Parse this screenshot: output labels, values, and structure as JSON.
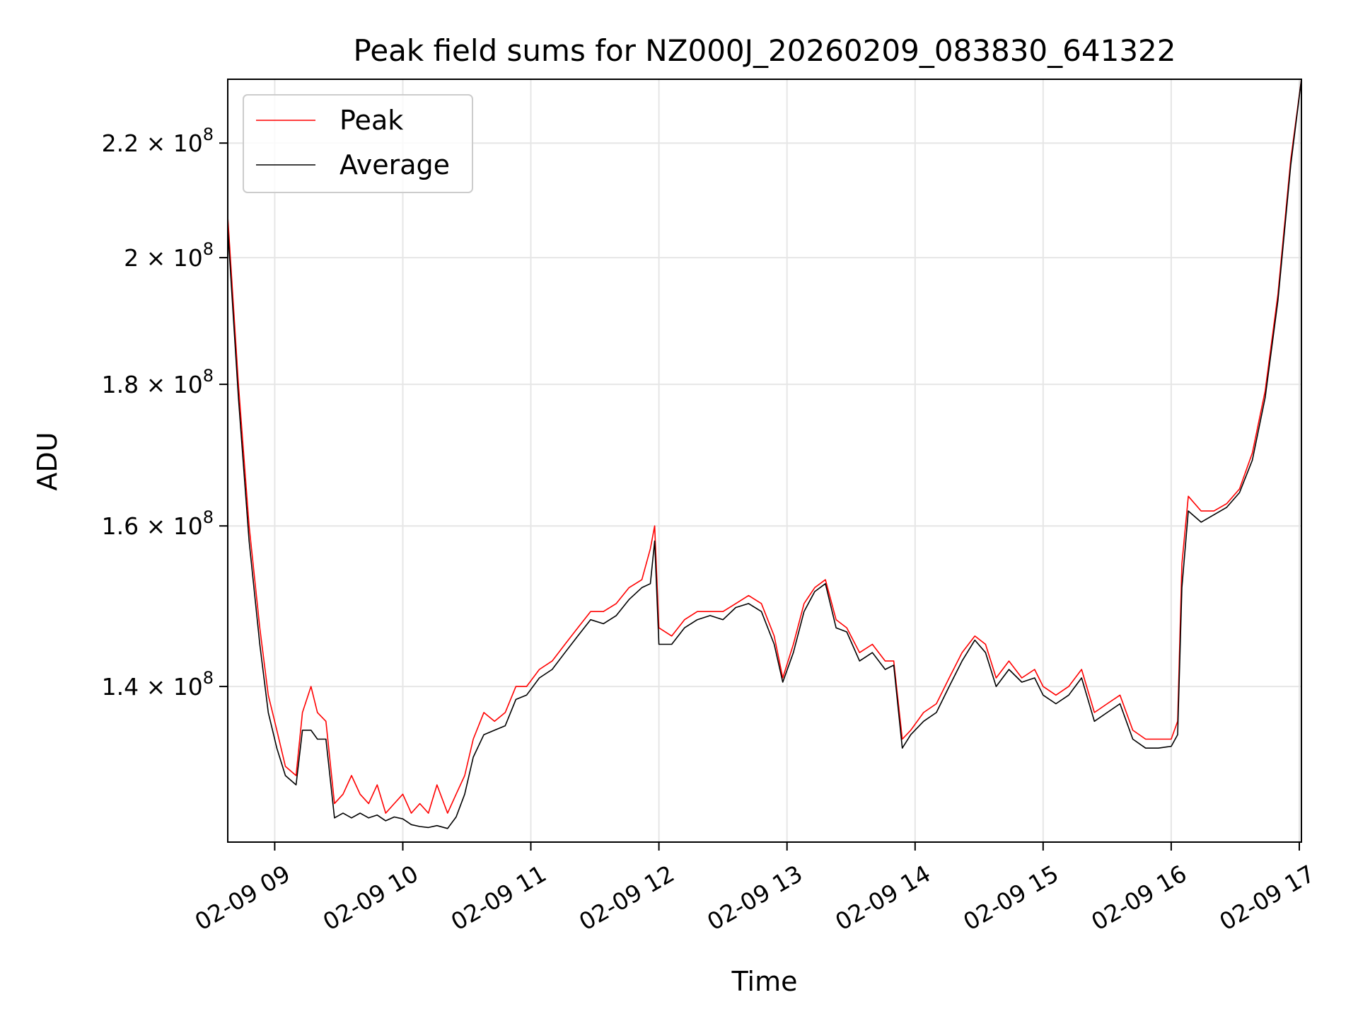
{
  "chart_data": {
    "type": "line",
    "title": "Peak field sums for NZ000J_20260209_083830_641322",
    "xlabel": "Time",
    "ylabel": "ADU",
    "yscale": "log",
    "xlim": [
      "2026-02-09T08:38",
      "2026-02-09T17:01"
    ],
    "ylim": [
      123000000,
      232000000
    ],
    "grid": true,
    "legend": "top-left",
    "x_ticks": [
      {
        "label": "02-09 09",
        "t": "2026-02-09T09:00"
      },
      {
        "label": "02-09 10",
        "t": "2026-02-09T10:00"
      },
      {
        "label": "02-09 11",
        "t": "2026-02-09T11:00"
      },
      {
        "label": "02-09 12",
        "t": "2026-02-09T12:00"
      },
      {
        "label": "02-09 13",
        "t": "2026-02-09T13:00"
      },
      {
        "label": "02-09 14",
        "t": "2026-02-09T14:00"
      },
      {
        "label": "02-09 15",
        "t": "2026-02-09T15:00"
      },
      {
        "label": "02-09 16",
        "t": "2026-02-09T16:00"
      },
      {
        "label": "02-09 17",
        "t": "2026-02-09T17:00"
      }
    ],
    "y_ticks": [
      {
        "value": 140000000,
        "mantissa": "1.4"
      },
      {
        "value": 160000000,
        "mantissa": "1.6"
      },
      {
        "value": 180000000,
        "mantissa": "1.8"
      },
      {
        "value": 200000000,
        "mantissa": "2"
      },
      {
        "value": 220000000,
        "mantissa": "2.2"
      }
    ],
    "y_tick_base": "10",
    "y_tick_exponent": "8",
    "y_tick_times": "×",
    "series": [
      {
        "name": "Peak",
        "color": "#ff0000",
        "points": [
          [
            "2026-02-09T08:38",
            207000000
          ],
          [
            "2026-02-09T08:43",
            180000000
          ],
          [
            "2026-02-09T08:48",
            160000000
          ],
          [
            "2026-02-09T08:53",
            147000000
          ],
          [
            "2026-02-09T08:57",
            139000000
          ],
          [
            "2026-02-09T09:01",
            135000000
          ],
          [
            "2026-02-09T09:05",
            131000000
          ],
          [
            "2026-02-09T09:10",
            130000000
          ],
          [
            "2026-02-09T09:13",
            137000000
          ],
          [
            "2026-02-09T09:17",
            140000000
          ],
          [
            "2026-02-09T09:20",
            137000000
          ],
          [
            "2026-02-09T09:24",
            136000000
          ],
          [
            "2026-02-09T09:28",
            127000000
          ],
          [
            "2026-02-09T09:32",
            128000000
          ],
          [
            "2026-02-09T09:36",
            130000000
          ],
          [
            "2026-02-09T09:40",
            128000000
          ],
          [
            "2026-02-09T09:44",
            127000000
          ],
          [
            "2026-02-09T09:48",
            129000000
          ],
          [
            "2026-02-09T09:52",
            126000000
          ],
          [
            "2026-02-09T09:56",
            127000000
          ],
          [
            "2026-02-09T10:00",
            128000000
          ],
          [
            "2026-02-09T10:04",
            126000000
          ],
          [
            "2026-02-09T10:08",
            127000000
          ],
          [
            "2026-02-09T10:12",
            126000000
          ],
          [
            "2026-02-09T10:16",
            129000000
          ],
          [
            "2026-02-09T10:21",
            126000000
          ],
          [
            "2026-02-09T10:25",
            128000000
          ],
          [
            "2026-02-09T10:29",
            130000000
          ],
          [
            "2026-02-09T10:33",
            134000000
          ],
          [
            "2026-02-09T10:38",
            137000000
          ],
          [
            "2026-02-09T10:43",
            136000000
          ],
          [
            "2026-02-09T10:48",
            137000000
          ],
          [
            "2026-02-09T10:53",
            140000000
          ],
          [
            "2026-02-09T10:58",
            140000000
          ],
          [
            "2026-02-09T11:04",
            142000000
          ],
          [
            "2026-02-09T11:10",
            143000000
          ],
          [
            "2026-02-09T11:16",
            145000000
          ],
          [
            "2026-02-09T11:22",
            147000000
          ],
          [
            "2026-02-09T11:28",
            149000000
          ],
          [
            "2026-02-09T11:34",
            149000000
          ],
          [
            "2026-02-09T11:40",
            150000000
          ],
          [
            "2026-02-09T11:46",
            152000000
          ],
          [
            "2026-02-09T11:52",
            153000000
          ],
          [
            "2026-02-09T11:56",
            157000000
          ],
          [
            "2026-02-09T11:58",
            160000000
          ],
          [
            "2026-02-09T12:00",
            147000000
          ],
          [
            "2026-02-09T12:06",
            146000000
          ],
          [
            "2026-02-09T12:12",
            148000000
          ],
          [
            "2026-02-09T12:18",
            149000000
          ],
          [
            "2026-02-09T12:24",
            149000000
          ],
          [
            "2026-02-09T12:30",
            149000000
          ],
          [
            "2026-02-09T12:36",
            150000000
          ],
          [
            "2026-02-09T12:42",
            151000000
          ],
          [
            "2026-02-09T12:48",
            150000000
          ],
          [
            "2026-02-09T12:54",
            146000000
          ],
          [
            "2026-02-09T12:58",
            141000000
          ],
          [
            "2026-02-09T13:03",
            145000000
          ],
          [
            "2026-02-09T13:08",
            150000000
          ],
          [
            "2026-02-09T13:13",
            152000000
          ],
          [
            "2026-02-09T13:18",
            153000000
          ],
          [
            "2026-02-09T13:23",
            148000000
          ],
          [
            "2026-02-09T13:28",
            147000000
          ],
          [
            "2026-02-09T13:34",
            144000000
          ],
          [
            "2026-02-09T13:40",
            145000000
          ],
          [
            "2026-02-09T13:46",
            143000000
          ],
          [
            "2026-02-09T13:50",
            143000000
          ],
          [
            "2026-02-09T13:54",
            134000000
          ],
          [
            "2026-02-09T13:58",
            135000000
          ],
          [
            "2026-02-09T14:04",
            137000000
          ],
          [
            "2026-02-09T14:10",
            138000000
          ],
          [
            "2026-02-09T14:16",
            141000000
          ],
          [
            "2026-02-09T14:22",
            144000000
          ],
          [
            "2026-02-09T14:28",
            146000000
          ],
          [
            "2026-02-09T14:33",
            145000000
          ],
          [
            "2026-02-09T14:38",
            141000000
          ],
          [
            "2026-02-09T14:44",
            143000000
          ],
          [
            "2026-02-09T14:50",
            141000000
          ],
          [
            "2026-02-09T14:56",
            142000000
          ],
          [
            "2026-02-09T15:00",
            140000000
          ],
          [
            "2026-02-09T15:06",
            139000000
          ],
          [
            "2026-02-09T15:12",
            140000000
          ],
          [
            "2026-02-09T15:18",
            142000000
          ],
          [
            "2026-02-09T15:24",
            137000000
          ],
          [
            "2026-02-09T15:30",
            138000000
          ],
          [
            "2026-02-09T15:36",
            139000000
          ],
          [
            "2026-02-09T15:42",
            135000000
          ],
          [
            "2026-02-09T15:48",
            134000000
          ],
          [
            "2026-02-09T15:54",
            134000000
          ],
          [
            "2026-02-09T16:00",
            134000000
          ],
          [
            "2026-02-09T16:03",
            136000000
          ],
          [
            "2026-02-09T16:05",
            155000000
          ],
          [
            "2026-02-09T16:08",
            164000000
          ],
          [
            "2026-02-09T16:14",
            162000000
          ],
          [
            "2026-02-09T16:20",
            162000000
          ],
          [
            "2026-02-09T16:26",
            163000000
          ],
          [
            "2026-02-09T16:32",
            165000000
          ],
          [
            "2026-02-09T16:38",
            170000000
          ],
          [
            "2026-02-09T16:44",
            179000000
          ],
          [
            "2026-02-09T16:50",
            194000000
          ],
          [
            "2026-02-09T16:56",
            217000000
          ],
          [
            "2026-02-09T17:01",
            232000000
          ]
        ]
      },
      {
        "name": "Average",
        "color": "#000000",
        "points": [
          [
            "2026-02-09T08:38",
            205000000
          ],
          [
            "2026-02-09T08:43",
            178000000
          ],
          [
            "2026-02-09T08:48",
            158000000
          ],
          [
            "2026-02-09T08:53",
            145000000
          ],
          [
            "2026-02-09T08:57",
            137000000
          ],
          [
            "2026-02-09T09:01",
            133000000
          ],
          [
            "2026-02-09T09:05",
            130000000
          ],
          [
            "2026-02-09T09:10",
            129000000
          ],
          [
            "2026-02-09T09:13",
            135000000
          ],
          [
            "2026-02-09T09:17",
            135000000
          ],
          [
            "2026-02-09T09:20",
            134000000
          ],
          [
            "2026-02-09T09:24",
            134000000
          ],
          [
            "2026-02-09T09:28",
            125500000
          ],
          [
            "2026-02-09T09:32",
            126000000
          ],
          [
            "2026-02-09T09:36",
            125500000
          ],
          [
            "2026-02-09T09:40",
            126000000
          ],
          [
            "2026-02-09T09:44",
            125500000
          ],
          [
            "2026-02-09T09:48",
            125800000
          ],
          [
            "2026-02-09T09:52",
            125200000
          ],
          [
            "2026-02-09T09:56",
            125600000
          ],
          [
            "2026-02-09T10:00",
            125400000
          ],
          [
            "2026-02-09T10:04",
            124800000
          ],
          [
            "2026-02-09T10:08",
            124600000
          ],
          [
            "2026-02-09T10:12",
            124500000
          ],
          [
            "2026-02-09T10:16",
            124700000
          ],
          [
            "2026-02-09T10:21",
            124400000
          ],
          [
            "2026-02-09T10:25",
            125600000
          ],
          [
            "2026-02-09T10:29",
            128000000
          ],
          [
            "2026-02-09T10:33",
            132000000
          ],
          [
            "2026-02-09T10:38",
            134500000
          ],
          [
            "2026-02-09T10:43",
            135000000
          ],
          [
            "2026-02-09T10:48",
            135500000
          ],
          [
            "2026-02-09T10:53",
            138500000
          ],
          [
            "2026-02-09T10:58",
            139000000
          ],
          [
            "2026-02-09T11:04",
            141000000
          ],
          [
            "2026-02-09T11:10",
            142000000
          ],
          [
            "2026-02-09T11:16",
            144000000
          ],
          [
            "2026-02-09T11:22",
            146000000
          ],
          [
            "2026-02-09T11:28",
            148000000
          ],
          [
            "2026-02-09T11:34",
            147500000
          ],
          [
            "2026-02-09T11:40",
            148500000
          ],
          [
            "2026-02-09T11:46",
            150500000
          ],
          [
            "2026-02-09T11:52",
            152000000
          ],
          [
            "2026-02-09T11:56",
            152500000
          ],
          [
            "2026-02-09T11:58",
            158000000
          ],
          [
            "2026-02-09T12:00",
            145000000
          ],
          [
            "2026-02-09T12:06",
            145000000
          ],
          [
            "2026-02-09T12:12",
            147000000
          ],
          [
            "2026-02-09T12:18",
            148000000
          ],
          [
            "2026-02-09T12:24",
            148500000
          ],
          [
            "2026-02-09T12:30",
            148000000
          ],
          [
            "2026-02-09T12:36",
            149500000
          ],
          [
            "2026-02-09T12:42",
            150000000
          ],
          [
            "2026-02-09T12:48",
            149000000
          ],
          [
            "2026-02-09T12:54",
            145000000
          ],
          [
            "2026-02-09T12:58",
            140500000
          ],
          [
            "2026-02-09T13:03",
            144000000
          ],
          [
            "2026-02-09T13:08",
            149000000
          ],
          [
            "2026-02-09T13:13",
            151500000
          ],
          [
            "2026-02-09T13:18",
            152500000
          ],
          [
            "2026-02-09T13:23",
            147000000
          ],
          [
            "2026-02-09T13:28",
            146500000
          ],
          [
            "2026-02-09T13:34",
            143000000
          ],
          [
            "2026-02-09T13:40",
            144000000
          ],
          [
            "2026-02-09T13:46",
            142000000
          ],
          [
            "2026-02-09T13:50",
            142500000
          ],
          [
            "2026-02-09T13:54",
            133000000
          ],
          [
            "2026-02-09T13:58",
            134500000
          ],
          [
            "2026-02-09T14:04",
            136000000
          ],
          [
            "2026-02-09T14:10",
            137000000
          ],
          [
            "2026-02-09T14:16",
            140000000
          ],
          [
            "2026-02-09T14:22",
            143000000
          ],
          [
            "2026-02-09T14:28",
            145500000
          ],
          [
            "2026-02-09T14:33",
            144000000
          ],
          [
            "2026-02-09T14:38",
            140000000
          ],
          [
            "2026-02-09T14:44",
            142000000
          ],
          [
            "2026-02-09T14:50",
            140500000
          ],
          [
            "2026-02-09T14:56",
            141000000
          ],
          [
            "2026-02-09T15:00",
            139000000
          ],
          [
            "2026-02-09T15:06",
            138000000
          ],
          [
            "2026-02-09T15:12",
            139000000
          ],
          [
            "2026-02-09T15:18",
            141000000
          ],
          [
            "2026-02-09T15:24",
            136000000
          ],
          [
            "2026-02-09T15:30",
            137000000
          ],
          [
            "2026-02-09T15:36",
            138000000
          ],
          [
            "2026-02-09T15:42",
            134000000
          ],
          [
            "2026-02-09T15:48",
            133000000
          ],
          [
            "2026-02-09T15:54",
            133000000
          ],
          [
            "2026-02-09T16:00",
            133200000
          ],
          [
            "2026-02-09T16:03",
            134500000
          ],
          [
            "2026-02-09T16:05",
            152000000
          ],
          [
            "2026-02-09T16:08",
            162000000
          ],
          [
            "2026-02-09T16:14",
            160500000
          ],
          [
            "2026-02-09T16:20",
            161500000
          ],
          [
            "2026-02-09T16:26",
            162500000
          ],
          [
            "2026-02-09T16:32",
            164500000
          ],
          [
            "2026-02-09T16:38",
            169000000
          ],
          [
            "2026-02-09T16:44",
            178000000
          ],
          [
            "2026-02-09T16:50",
            193000000
          ],
          [
            "2026-02-09T16:56",
            216000000
          ],
          [
            "2026-02-09T17:01",
            232000000
          ]
        ]
      }
    ]
  }
}
